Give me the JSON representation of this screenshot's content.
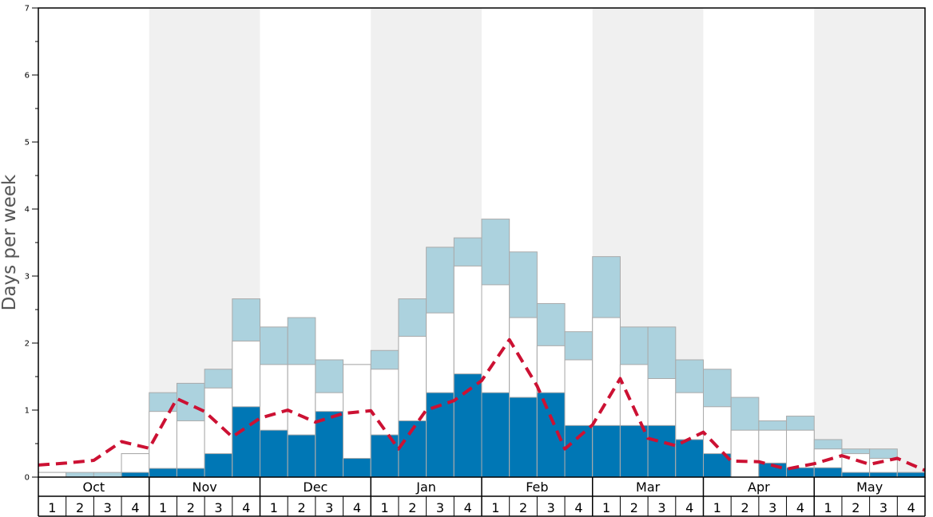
{
  "chart_data": {
    "type": "bar",
    "title": "",
    "xlabel": "",
    "ylabel": "Days per week",
    "ylim": [
      0,
      7
    ],
    "yticks": [
      0,
      1,
      2,
      3,
      4,
      5,
      6,
      7
    ],
    "grid": false,
    "months": [
      "Oct",
      "Nov",
      "Dec",
      "Jan",
      "Feb",
      "Mar",
      "Apr",
      "May"
    ],
    "week_labels": [
      "1",
      "2",
      "3",
      "4"
    ],
    "colors": {
      "dark": "#0077b5",
      "white": "#ffffff",
      "light": "#acd2de",
      "line": "#cc1133",
      "band": "#f0f0f0",
      "bar_edge": "#aaaaaa"
    },
    "series": [
      {
        "values": [
          0.0,
          0.0,
          0.0,
          0.07,
          0.13,
          0.13,
          0.35,
          1.05,
          0.7,
          0.63,
          0.98,
          0.28,
          0.63,
          0.84,
          1.26,
          1.54,
          1.26,
          1.19,
          1.26,
          0.77,
          0.77,
          0.77,
          0.77,
          0.56,
          0.35,
          0.0,
          0.21,
          0.14,
          0.14,
          0.07,
          0.07,
          0.07
        ]
      },
      {
        "values": [
          0.07,
          0.0,
          0.0,
          0.35,
          0.98,
          0.84,
          1.33,
          2.03,
          1.68,
          1.68,
          1.26,
          1.68,
          1.61,
          2.1,
          2.45,
          3.15,
          2.87,
          2.38,
          1.96,
          1.75,
          2.38,
          1.68,
          1.47,
          1.26,
          1.05,
          0.7,
          0.7,
          0.7,
          0.42,
          0.35,
          0.28,
          0.07
        ]
      },
      {
        "values": [
          0.07,
          0.07,
          0.07,
          0.35,
          1.26,
          1.4,
          1.61,
          2.66,
          2.24,
          2.38,
          1.75,
          1.68,
          1.89,
          2.66,
          3.43,
          3.57,
          3.85,
          3.36,
          2.59,
          2.17,
          3.29,
          2.24,
          2.24,
          1.75,
          1.61,
          1.19,
          0.84,
          0.91,
          0.56,
          0.42,
          0.42,
          0.07
        ]
      },
      {
        "values": [
          0.18,
          0.21,
          0.25,
          0.53,
          0.43,
          1.17,
          0.98,
          0.6,
          0.88,
          1.0,
          0.82,
          0.95,
          0.99,
          0.42,
          1.0,
          1.14,
          1.44,
          2.05,
          1.36,
          0.42,
          0.78,
          1.47,
          0.58,
          0.47,
          0.67,
          0.24,
          0.23,
          0.12,
          0.2,
          0.32,
          0.19,
          0.28,
          0.1
        ]
      }
    ]
  }
}
